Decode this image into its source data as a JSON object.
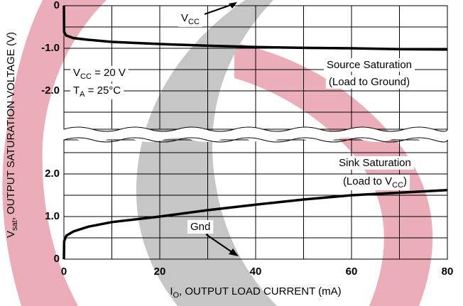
{
  "chart_data": {
    "type": "line",
    "x_label_parts": [
      {
        "text": "I"
      },
      {
        "sub": "O"
      },
      {
        "text": ", OUTPUT LOAD CURRENT (mA)"
      }
    ],
    "y_label_parts": [
      {
        "text": "V"
      },
      {
        "sub": "sat"
      },
      {
        "text": ", OUTPUT SATURATION VOLTAGE (V)"
      }
    ],
    "xlim": [
      0,
      80
    ],
    "xticks": [
      0,
      20,
      40,
      60,
      80
    ],
    "x_minor_grid": [
      10,
      30,
      50,
      70
    ],
    "panels": [
      {
        "ylim": [
          -2.9,
          0
        ],
        "yticks": [
          {
            "value": 0,
            "label": "0"
          },
          {
            "value": -1,
            "label": "-1.0"
          },
          {
            "value": -2,
            "label": "-2.0"
          }
        ],
        "y_minor_grid": [
          -0.5,
          -1.5,
          -2.5
        ]
      },
      {
        "ylim": [
          0,
          2.8
        ],
        "yticks": [
          {
            "value": 0,
            "label": "0"
          },
          {
            "value": 1,
            "label": "1.0"
          },
          {
            "value": 2,
            "label": "2.0"
          }
        ],
        "y_minor_grid": [
          0.5,
          1.5,
          2.5
        ]
      }
    ],
    "series": [
      {
        "name": "Source Saturation",
        "panel": 0,
        "color": "#000000",
        "x": [
          0,
          0.05,
          0.5,
          2,
          5,
          10,
          20,
          30,
          40,
          50,
          60,
          70,
          80
        ],
        "values": [
          0,
          -0.62,
          -0.7,
          -0.76,
          -0.8,
          -0.85,
          -0.9,
          -0.94,
          -0.97,
          -0.99,
          -1.0,
          -1.02,
          -1.03
        ]
      },
      {
        "name": "Sink Saturation",
        "panel": 1,
        "color": "#000000",
        "x": [
          0,
          0.05,
          0.5,
          2,
          5,
          10,
          20,
          30,
          40,
          50,
          60,
          70,
          80
        ],
        "values": [
          0,
          0.42,
          0.55,
          0.65,
          0.76,
          0.87,
          1.0,
          1.15,
          1.28,
          1.4,
          1.5,
          1.56,
          1.62
        ]
      }
    ],
    "annotations": [
      {
        "parts": [
          {
            "text": "V"
          },
          {
            "sub": "CC"
          }
        ]
      },
      {
        "parts": [
          {
            "text": "Source Saturation"
          }
        ]
      },
      {
        "parts": [
          {
            "text": "(Load to Ground)"
          }
        ]
      },
      {
        "parts": [
          {
            "text": "V"
          },
          {
            "sub": "CC"
          },
          {
            "text": " = 20 V"
          }
        ]
      },
      {
        "parts": [
          {
            "text": "T"
          },
          {
            "sub": "A"
          },
          {
            "text": " = 25°C"
          }
        ]
      },
      {
        "parts": [
          {
            "text": "Sink Saturation"
          }
        ]
      },
      {
        "parts": [
          {
            "text": "(Load to V"
          },
          {
            "sub": "CC"
          },
          {
            "text": ")"
          }
        ]
      },
      {
        "parts": [
          {
            "text": "Gnd"
          }
        ]
      }
    ]
  }
}
